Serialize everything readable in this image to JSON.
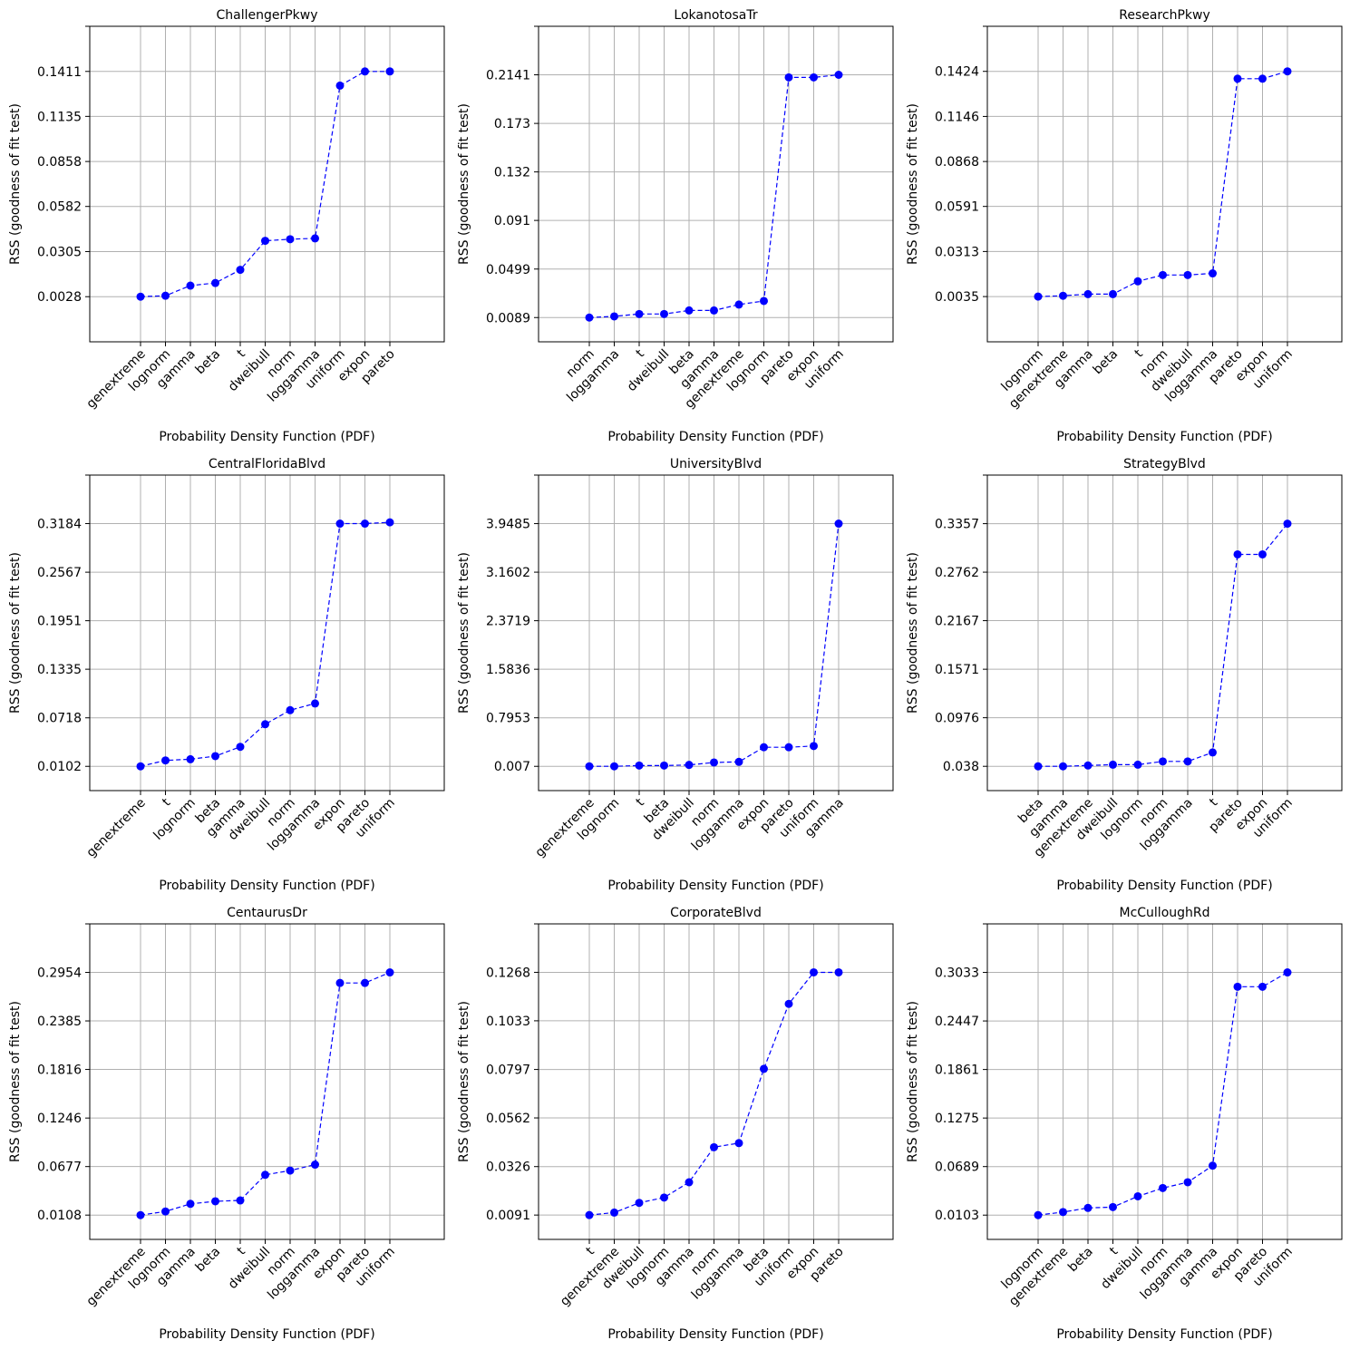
{
  "chart_data": [
    {
      "type": "line",
      "title": "ChallengerPkwy",
      "xlabel": "Probability Density Function (PDF)",
      "ylabel": "RSS (goodness of fit test)",
      "categories": [
        "genextreme",
        "lognorm",
        "gamma",
        "beta",
        "t",
        "dweibull",
        "norm",
        "loggamma",
        "uniform",
        "expon",
        "pareto"
      ],
      "values": [
        0.0028,
        0.0034,
        0.0096,
        0.0112,
        0.0193,
        0.0371,
        0.0381,
        0.0386,
        0.1324,
        0.1411,
        0.1411
      ],
      "yticks": [
        "0.0028",
        "0.0305",
        "0.0582",
        "0.0858",
        "0.1135",
        "0.1411"
      ],
      "ylim": [
        -0.0249,
        0.1688
      ],
      "grid": true
    },
    {
      "type": "line",
      "title": "LokanotosaTr",
      "xlabel": "Probability Density Function (PDF)",
      "ylabel": "RSS (goodness of fit test)",
      "categories": [
        "norm",
        "loggamma",
        "t",
        "dweibull",
        "beta",
        "gamma",
        "genextreme",
        "lognorm",
        "pareto",
        "expon",
        "uniform"
      ],
      "values": [
        0.0089,
        0.0099,
        0.0119,
        0.0119,
        0.0149,
        0.0149,
        0.0199,
        0.0229,
        0.2119,
        0.2119,
        0.2141
      ],
      "yticks": [
        "0.0089",
        "0.0499",
        "0.091",
        "0.132",
        "0.173",
        "0.2141"
      ],
      "ylim": [
        -0.0116,
        0.2551
      ],
      "grid": true
    },
    {
      "type": "line",
      "title": "ResearchPkwy",
      "xlabel": "Probability Density Function (PDF)",
      "ylabel": "RSS (goodness of fit test)",
      "categories": [
        "lognorm",
        "genextreme",
        "gamma",
        "beta",
        "t",
        "norm",
        "dweibull",
        "loggamma",
        "pareto",
        "expon",
        "uniform"
      ],
      "values": [
        0.0035,
        0.004,
        0.005,
        0.005,
        0.0129,
        0.0168,
        0.0168,
        0.0178,
        0.1379,
        0.1379,
        0.1424
      ],
      "yticks": [
        "0.0035",
        "0.0313",
        "0.0591",
        "0.0868",
        "0.1146",
        "0.1424"
      ],
      "ylim": [
        -0.0244,
        0.1702
      ],
      "grid": true
    },
    {
      "type": "line",
      "title": "CentralFloridaBlvd",
      "xlabel": "Probability Density Function (PDF)",
      "ylabel": "RSS (goodness of fit test)",
      "categories": [
        "genextreme",
        "t",
        "lognorm",
        "beta",
        "gamma",
        "dweibull",
        "norm",
        "loggamma",
        "expon",
        "pareto",
        "uniform"
      ],
      "values": [
        0.0102,
        0.0177,
        0.0192,
        0.0232,
        0.035,
        0.0637,
        0.0815,
        0.09,
        0.3184,
        0.3184,
        0.32
      ],
      "yticks": [
        "0.0102",
        "0.0718",
        "0.1335",
        "0.1951",
        "0.2567",
        "0.3184"
      ],
      "ylim": [
        -0.0206,
        0.38
      ],
      "grid": true
    },
    {
      "type": "line",
      "title": "UniversityBlvd",
      "xlabel": "Probability Density Function (PDF)",
      "ylabel": "RSS (goodness of fit test)",
      "categories": [
        "genextreme",
        "lognorm",
        "t",
        "beta",
        "dweibull",
        "norm",
        "loggamma",
        "expon",
        "pareto",
        "uniform",
        "gamma"
      ],
      "values": [
        0.007,
        0.007,
        0.02,
        0.02,
        0.03,
        0.07,
        0.08,
        0.317,
        0.317,
        0.337,
        3.9485
      ],
      "yticks": [
        "0.007",
        "0.7953",
        "1.5836",
        "2.3719",
        "3.1602",
        "3.9485"
      ],
      "ylim": [
        -0.3871,
        4.7368
      ],
      "grid": true
    },
    {
      "type": "line",
      "title": "StrategyBlvd",
      "xlabel": "Probability Density Function (PDF)",
      "ylabel": "RSS (goodness of fit test)",
      "categories": [
        "beta",
        "gamma",
        "genextreme",
        "dweibull",
        "lognorm",
        "norm",
        "loggamma",
        "t",
        "pareto",
        "expon",
        "uniform"
      ],
      "values": [
        0.038,
        0.038,
        0.039,
        0.04,
        0.04,
        0.044,
        0.044,
        0.055,
        0.298,
        0.298,
        0.3357
      ],
      "yticks": [
        "0.038",
        "0.0976",
        "0.1571",
        "0.2167",
        "0.2762",
        "0.3357"
      ],
      "ylim": [
        0.0082,
        0.3953
      ],
      "grid": true
    },
    {
      "type": "line",
      "title": "CentaurusDr",
      "xlabel": "Probability Density Function (PDF)",
      "ylabel": "RSS (goodness of fit test)",
      "categories": [
        "genextreme",
        "lognorm",
        "gamma",
        "beta",
        "t",
        "dweibull",
        "norm",
        "loggamma",
        "expon",
        "pareto",
        "uniform"
      ],
      "values": [
        0.0108,
        0.015,
        0.024,
        0.027,
        0.028,
        0.058,
        0.063,
        0.07,
        0.283,
        0.283,
        0.2954
      ],
      "yticks": [
        "0.0108",
        "0.0677",
        "0.1246",
        "0.1816",
        "0.2385",
        "0.2954"
      ],
      "ylim": [
        -0.0177,
        0.3523
      ],
      "grid": true
    },
    {
      "type": "line",
      "title": "CorporateBlvd",
      "xlabel": "Probability Density Function (PDF)",
      "ylabel": "RSS (goodness of fit test)",
      "categories": [
        "t",
        "genextreme",
        "dweibull",
        "lognorm",
        "gamma",
        "norm",
        "loggamma",
        "beta",
        "uniform",
        "expon",
        "pareto"
      ],
      "values": [
        0.0091,
        0.0103,
        0.015,
        0.0176,
        0.025,
        0.042,
        0.044,
        0.08,
        0.1115,
        0.1268,
        0.1268
      ],
      "yticks": [
        "0.0091",
        "0.0326",
        "0.0562",
        "0.0797",
        "0.1033",
        "0.1268"
      ],
      "ylim": [
        -0.0027,
        0.1503
      ],
      "grid": true
    },
    {
      "type": "line",
      "title": "McCulloughRd",
      "xlabel": "Probability Density Function (PDF)",
      "ylabel": "RSS (goodness of fit test)",
      "categories": [
        "lognorm",
        "genextreme",
        "beta",
        "t",
        "dweibull",
        "norm",
        "loggamma",
        "gamma",
        "expon",
        "pareto",
        "uniform"
      ],
      "values": [
        0.0103,
        0.014,
        0.019,
        0.02,
        0.033,
        0.043,
        0.05,
        0.07,
        0.286,
        0.286,
        0.3033
      ],
      "yticks": [
        "0.0103",
        "0.0689",
        "0.1275",
        "0.1861",
        "0.2447",
        "0.3033"
      ],
      "ylim": [
        -0.019,
        0.3619
      ],
      "grid": true
    }
  ],
  "colors": {
    "line": "#0000ff",
    "marker": "#0000ff",
    "grid": "#b0b0b0",
    "axes": "#000000"
  }
}
